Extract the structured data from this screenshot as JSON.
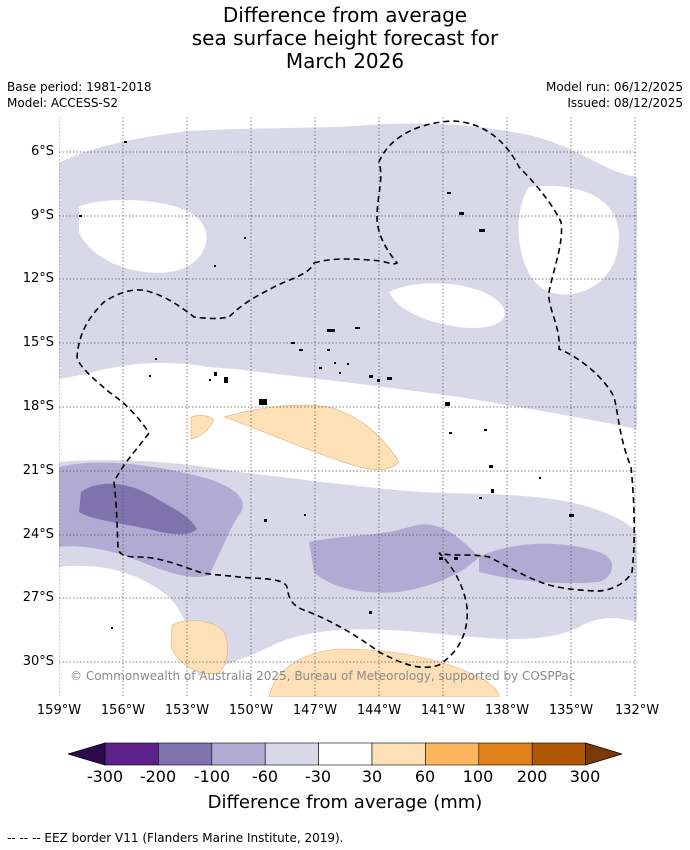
{
  "title": {
    "line1": "Difference from average",
    "line2": "sea surface height forecast for",
    "line3": "March 2026"
  },
  "meta": {
    "base_period": "Base period: 1981-2018",
    "model": "Model: ACCESS-S2",
    "model_run": "Model run: 06/12/2025",
    "issued": "Issued: 08/12/2025"
  },
  "map": {
    "lat_labels": [
      "6°S",
      "9°S",
      "12°S",
      "15°S",
      "18°S",
      "21°S",
      "24°S",
      "27°S",
      "30°S"
    ],
    "lon_labels": [
      "159°W",
      "156°W",
      "153°W",
      "150°W",
      "147°W",
      "144°W",
      "141°W",
      "138°W",
      "135°W",
      "132°W"
    ],
    "copyright": "© Commonwealth of Australia 2025, Bureau of Meteorology, supported by COSPPac",
    "colors": {
      "minus_30_60": "#d8d8e9",
      "minus_60_100": "#b1abd3",
      "minus_100_200": "#7f73ae",
      "plus_30_60": "#fde0b6",
      "land": "#000000",
      "eez": "#000000"
    }
  },
  "colorbar": {
    "title": "Difference from average (mm)",
    "ticks": [
      "-300",
      "-200",
      "-100",
      "-60",
      "-30",
      "30",
      "60",
      "100",
      "200",
      "300"
    ],
    "colors": [
      "#5c2289",
      "#7f73ae",
      "#b1abd3",
      "#d8d8e9",
      "#ffffff",
      "#fde0b6",
      "#fbb55f",
      "#e0821a",
      "#b05706"
    ],
    "under_color": "#2d0a4e",
    "over_color": "#7a3a0b"
  },
  "footnote": "--  --  -- EEZ border V11 (Flanders Marine Institute, 2019)."
}
